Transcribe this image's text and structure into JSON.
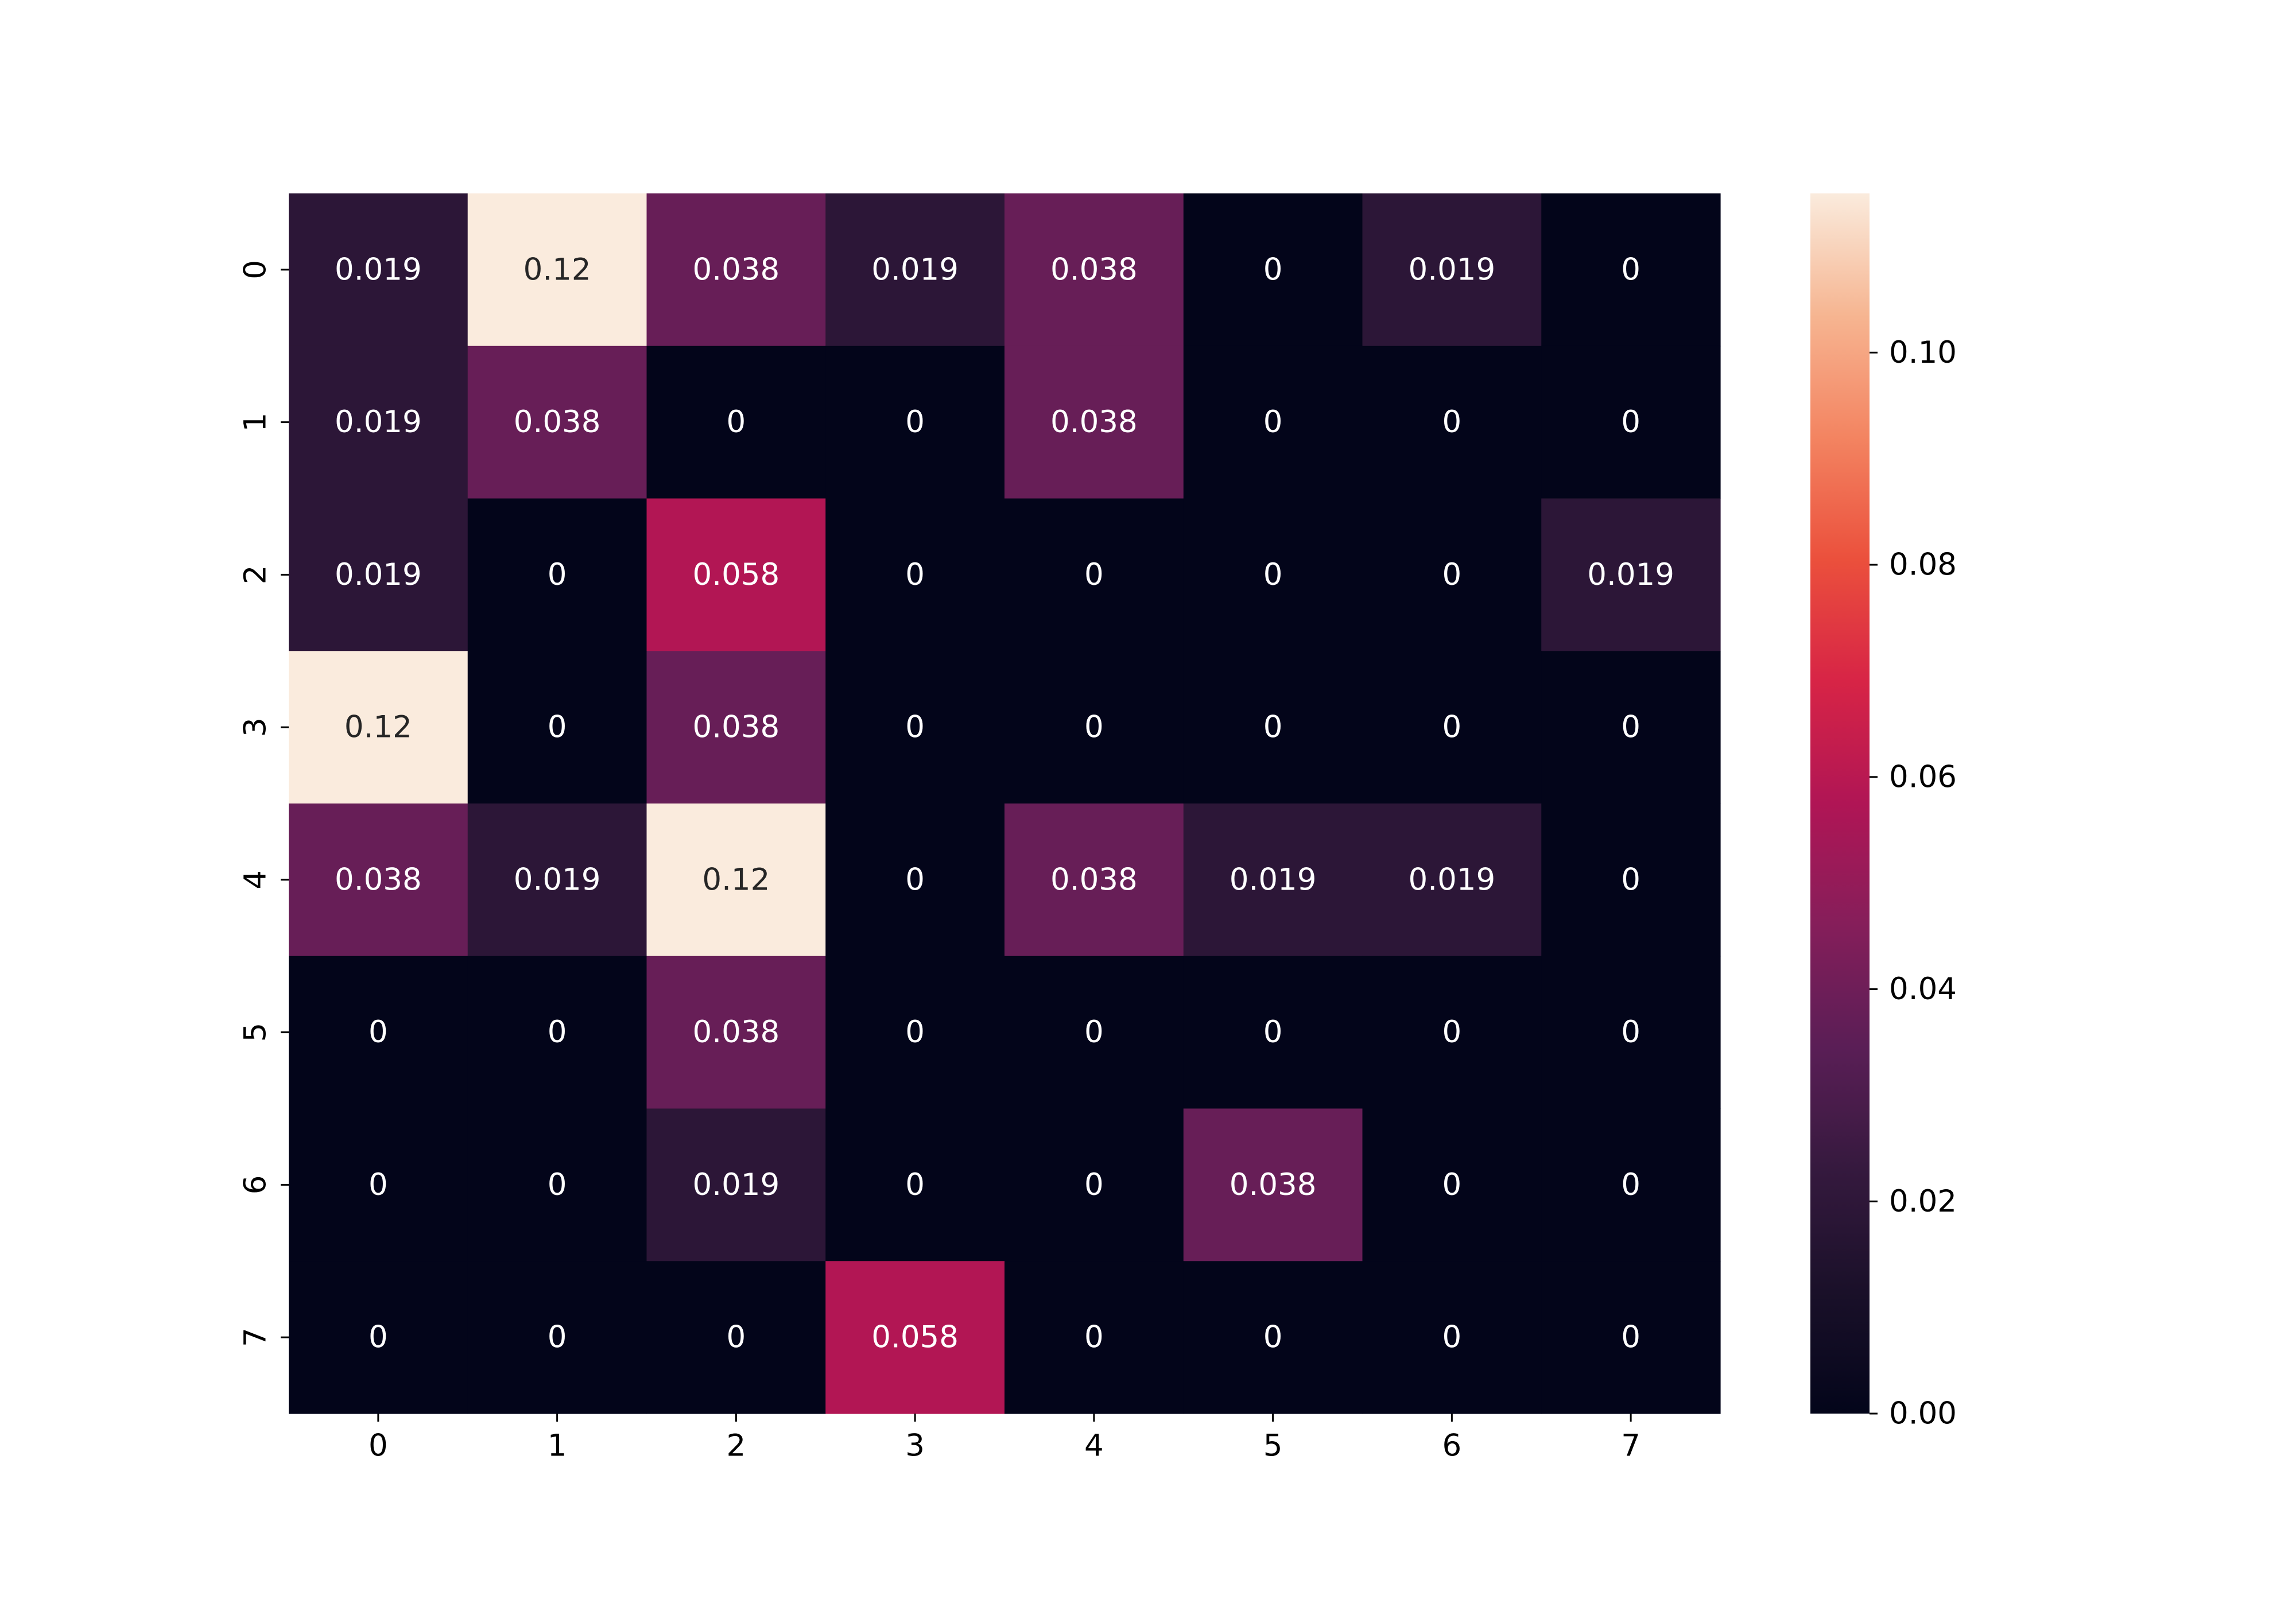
{
  "chart_data": {
    "type": "heatmap",
    "title": "",
    "xlabel": "",
    "ylabel": "",
    "x_categories": [
      "0",
      "1",
      "2",
      "3",
      "4",
      "5",
      "6",
      "7"
    ],
    "y_categories": [
      "0",
      "1",
      "2",
      "3",
      "4",
      "5",
      "6",
      "7"
    ],
    "values": [
      [
        0.019,
        0.12,
        0.038,
        0.019,
        0.038,
        0,
        0.019,
        0
      ],
      [
        0.019,
        0.038,
        0,
        0,
        0.038,
        0,
        0,
        0
      ],
      [
        0.019,
        0,
        0.058,
        0,
        0,
        0,
        0,
        0.019
      ],
      [
        0.12,
        0,
        0.038,
        0,
        0,
        0,
        0,
        0
      ],
      [
        0.038,
        0.019,
        0.12,
        0,
        0.038,
        0.019,
        0.019,
        0
      ],
      [
        0,
        0,
        0.038,
        0,
        0,
        0,
        0,
        0
      ],
      [
        0,
        0,
        0.019,
        0,
        0,
        0.038,
        0,
        0
      ],
      [
        0,
        0,
        0,
        0.058,
        0,
        0,
        0,
        0
      ]
    ],
    "annotations": [
      [
        "0.019",
        "0.12",
        "0.038",
        "0.019",
        "0.038",
        "0",
        "0.019",
        "0"
      ],
      [
        "0.019",
        "0.038",
        "0",
        "0",
        "0.038",
        "0",
        "0",
        "0"
      ],
      [
        "0.019",
        "0",
        "0.058",
        "0",
        "0",
        "0",
        "0",
        "0.019"
      ],
      [
        "0.12",
        "0",
        "0.038",
        "0",
        "0",
        "0",
        "0",
        "0"
      ],
      [
        "0.038",
        "0.019",
        "0.12",
        "0",
        "0.038",
        "0.019",
        "0.019",
        "0"
      ],
      [
        "0",
        "0",
        "0.038",
        "0",
        "0",
        "0",
        "0",
        "0"
      ],
      [
        "0",
        "0",
        "0.019",
        "0",
        "0",
        "0.038",
        "0",
        "0"
      ],
      [
        "0",
        "0",
        "0",
        "0.058",
        "0",
        "0",
        "0",
        "0"
      ]
    ],
    "colormap": "rocket",
    "value_range": [
      0,
      0.115
    ],
    "colorbar": {
      "ticks": [
        0.0,
        0.02,
        0.04,
        0.06,
        0.08,
        0.1
      ],
      "tick_labels": [
        "0.00",
        "0.02",
        "0.04",
        "0.06",
        "0.08",
        "0.10"
      ],
      "placement": "right"
    }
  }
}
